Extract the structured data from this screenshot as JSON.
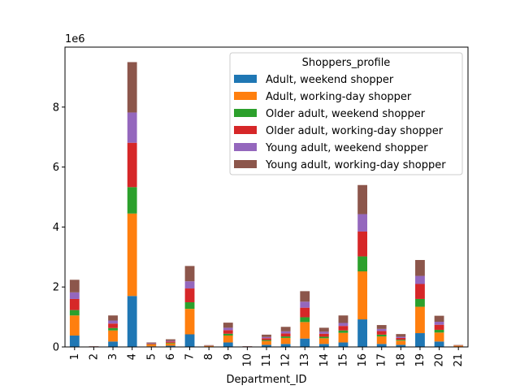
{
  "chart_data": {
    "type": "bar",
    "stacked": true,
    "xlabel": "Department_ID",
    "ylabel": "",
    "y_offset_label": "1e6",
    "ylim": [
      0,
      10000000
    ],
    "yticks": [
      0,
      2,
      4,
      6,
      8
    ],
    "categories": [
      "1",
      "2",
      "3",
      "4",
      "5",
      "6",
      "7",
      "8",
      "9",
      "10",
      "11",
      "12",
      "13",
      "14",
      "15",
      "16",
      "17",
      "18",
      "19",
      "20",
      "21"
    ],
    "legend": {
      "title": "Shoppers_profile",
      "placement": "upper-right"
    },
    "series": [
      {
        "name": "Adult, weekend shopper",
        "color": "#1f77b4",
        "values": [
          380000,
          5000,
          180000,
          1700000,
          20000,
          40000,
          420000,
          10000,
          150000,
          5000,
          70000,
          100000,
          280000,
          100000,
          150000,
          920000,
          100000,
          70000,
          460000,
          180000,
          10000
        ]
      },
      {
        "name": "Adult, working-day shopper",
        "color": "#ff7f0e",
        "values": [
          670000,
          8000,
          370000,
          2750000,
          60000,
          80000,
          850000,
          20000,
          230000,
          8000,
          130000,
          200000,
          550000,
          190000,
          320000,
          1600000,
          250000,
          140000,
          880000,
          300000,
          30000
        ]
      },
      {
        "name": "Older adult, weekend shopper",
        "color": "#2ca02c",
        "values": [
          180000,
          2000,
          80000,
          880000,
          10000,
          20000,
          220000,
          5000,
          60000,
          2000,
          30000,
          50000,
          160000,
          50000,
          80000,
          500000,
          60000,
          30000,
          260000,
          90000,
          3000
        ]
      },
      {
        "name": "Older adult, working-day shopper",
        "color": "#d62728",
        "values": [
          370000,
          4000,
          150000,
          1480000,
          20000,
          40000,
          460000,
          10000,
          120000,
          4000,
          60000,
          100000,
          320000,
          100000,
          150000,
          830000,
          120000,
          60000,
          500000,
          170000,
          7000
        ]
      },
      {
        "name": "Young adult, weekend shopper",
        "color": "#9467bd",
        "values": [
          220000,
          2000,
          100000,
          1010000,
          15000,
          25000,
          240000,
          5000,
          80000,
          3000,
          40000,
          70000,
          200000,
          70000,
          100000,
          580000,
          70000,
          40000,
          270000,
          100000,
          5000
        ]
      },
      {
        "name": "Young adult, working-day shopper",
        "color": "#8c564b",
        "values": [
          420000,
          4000,
          170000,
          1680000,
          25000,
          50000,
          510000,
          10000,
          170000,
          5000,
          80000,
          150000,
          350000,
          130000,
          250000,
          970000,
          130000,
          90000,
          530000,
          200000,
          10000
        ]
      }
    ]
  }
}
